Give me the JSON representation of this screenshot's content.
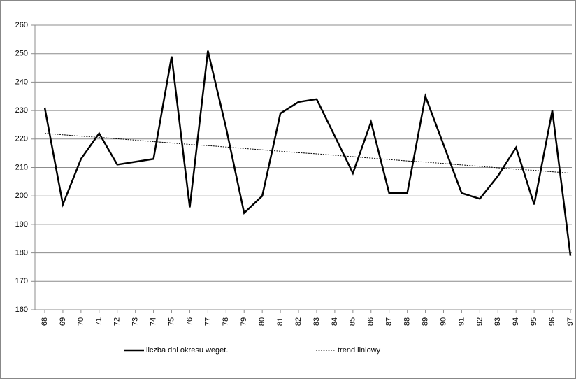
{
  "chart_data": {
    "type": "line",
    "categories": [
      "68",
      "69",
      "70",
      "71",
      "72",
      "73",
      "74",
      "75",
      "76",
      "77",
      "78",
      "79",
      "80",
      "81",
      "82",
      "83",
      "84",
      "85",
      "86",
      "87",
      "88",
      "89",
      "90",
      "91",
      "92",
      "93",
      "94",
      "95",
      "96",
      "97"
    ],
    "series": [
      {
        "name": "liczba dni okresu weget.",
        "color": "#000000",
        "style": "solid",
        "values": [
          231,
          197,
          213,
          222,
          211,
          212,
          213,
          249,
          196,
          251,
          224,
          194,
          200,
          229,
          233,
          234,
          221,
          208,
          226,
          201,
          201,
          235,
          218,
          201,
          199,
          207,
          217,
          197,
          230,
          179
        ]
      },
      {
        "name": "trend liniowy",
        "color": "#000000",
        "style": "dotted",
        "values": [
          222.0,
          221.5,
          221.0,
          220.6,
          220.1,
          219.6,
          219.1,
          218.6,
          218.1,
          217.7,
          217.2,
          216.7,
          216.2,
          215.7,
          215.2,
          214.8,
          214.3,
          213.8,
          213.3,
          212.8,
          212.3,
          211.9,
          211.4,
          210.9,
          210.4,
          209.9,
          209.4,
          209.0,
          208.5,
          208.0
        ]
      }
    ],
    "ylim": [
      160,
      260
    ],
    "yticks": [
      160,
      170,
      180,
      190,
      200,
      210,
      220,
      230,
      240,
      250,
      260
    ],
    "grid": true,
    "legend": "bottom"
  }
}
